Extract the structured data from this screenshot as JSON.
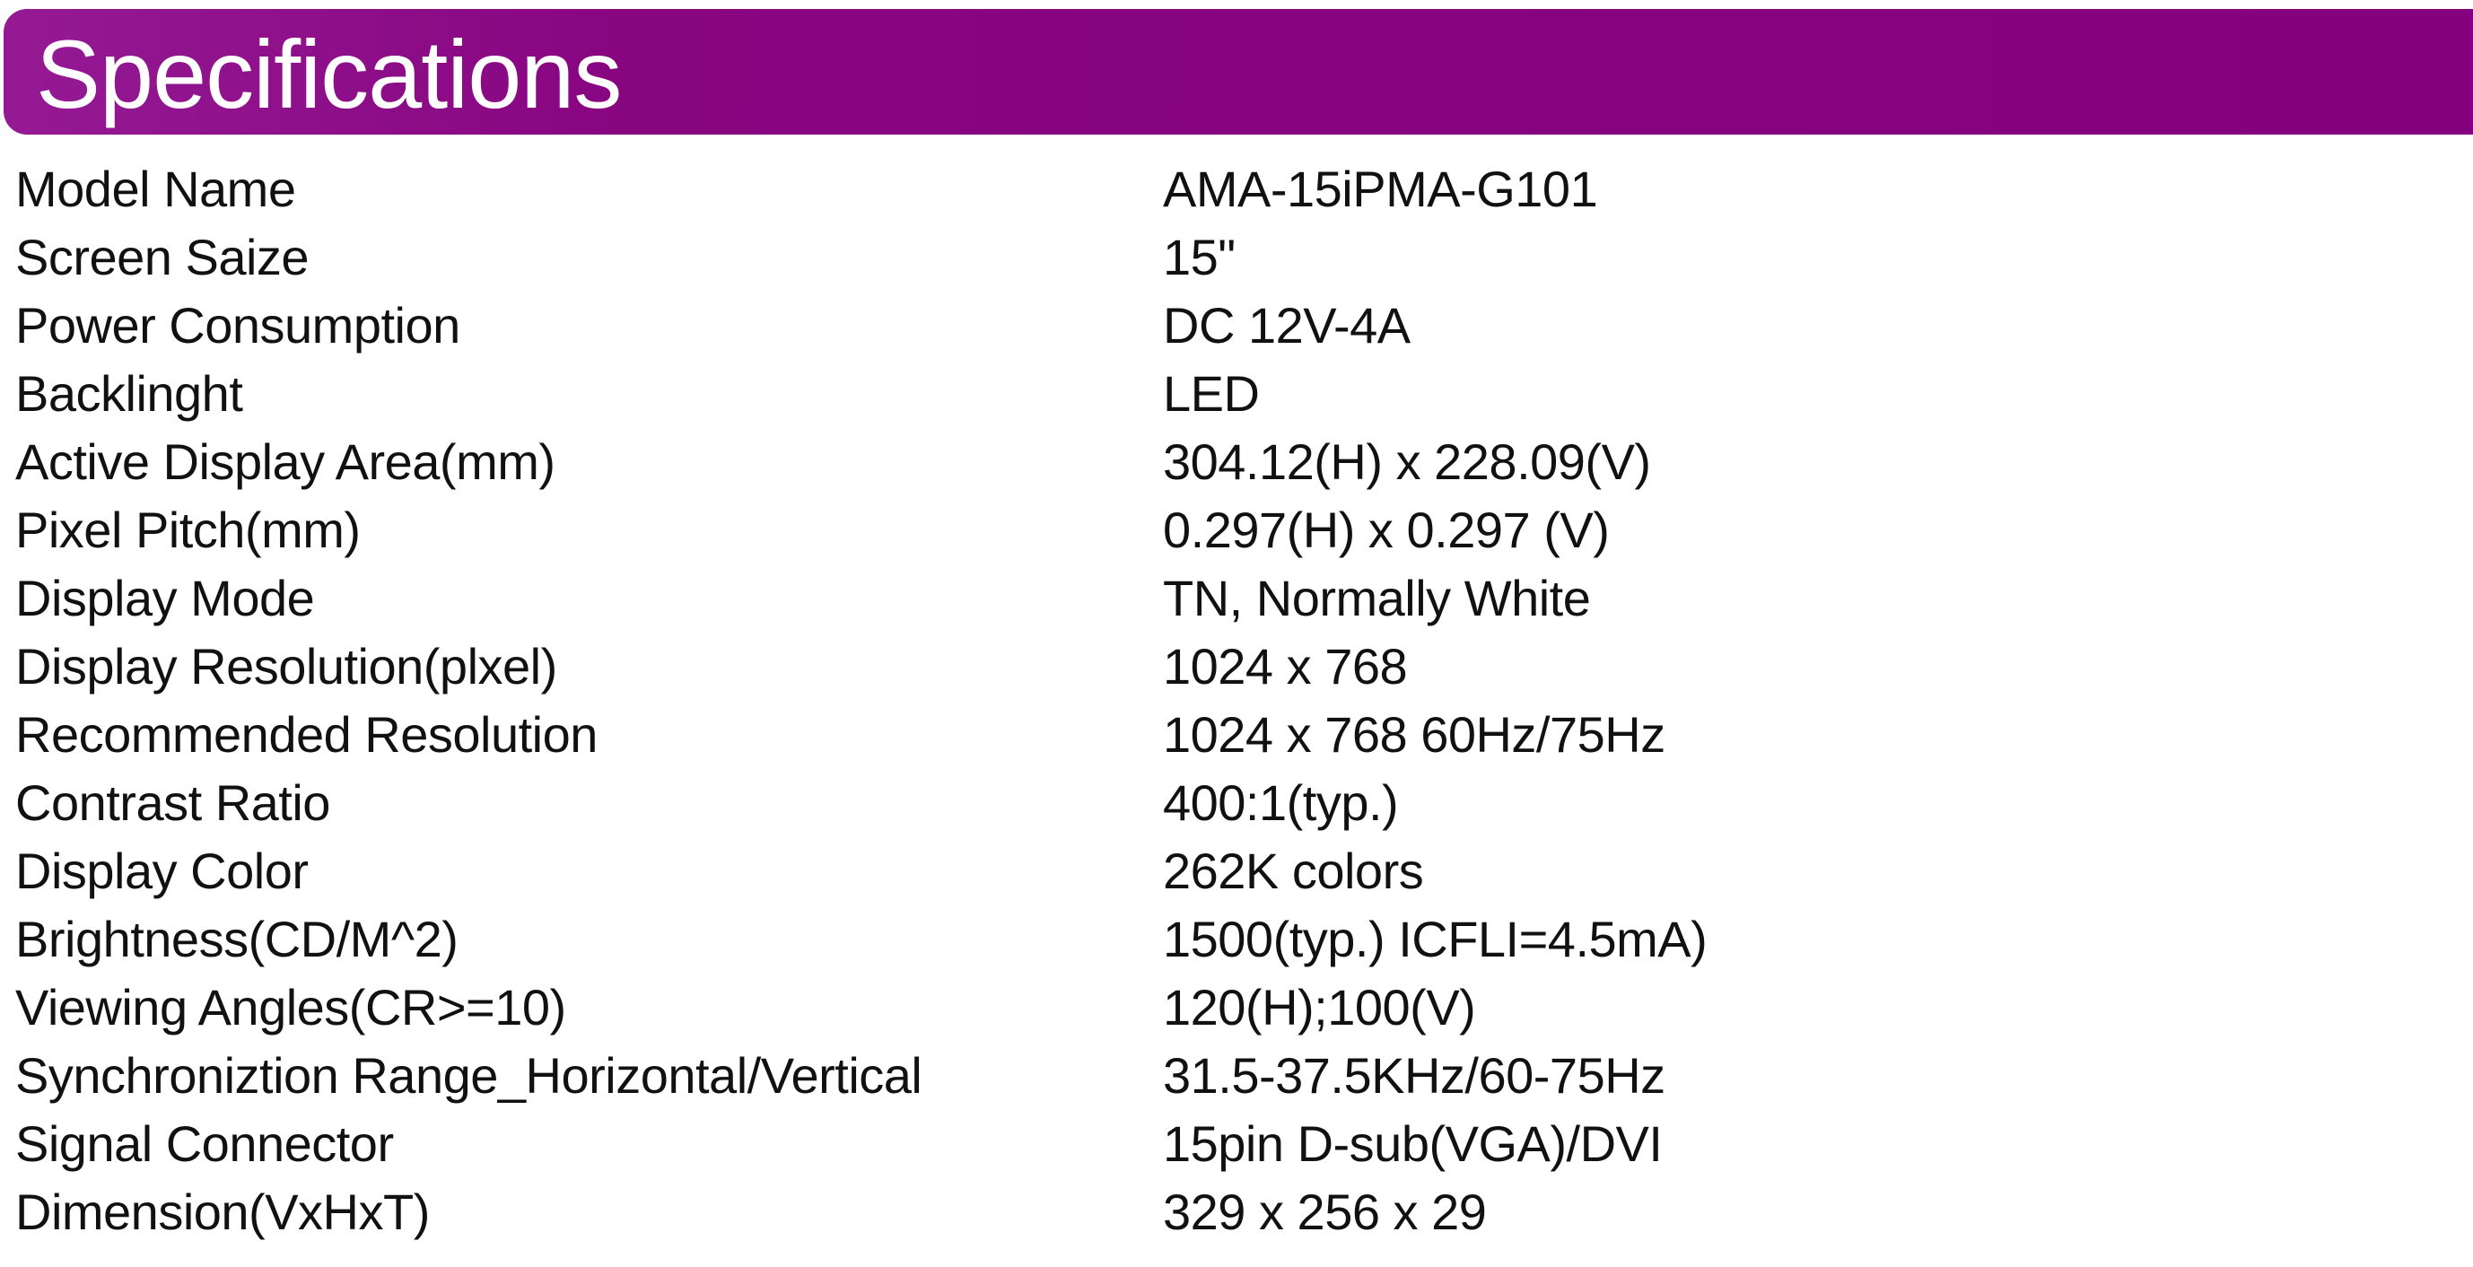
{
  "header": {
    "title": "Specifications",
    "color": "#880580"
  },
  "specs": [
    {
      "label": "Model Name",
      "value": "AMA-15iPMA-G101"
    },
    {
      "label": "Screen Saize",
      "value": "15\""
    },
    {
      "label": "Power Consumption",
      "value": "DC 12V-4A"
    },
    {
      "label": "Backlinght",
      "value": "LED"
    },
    {
      "label": "Active Display Area(mm)",
      "value": "304.12(H) x 228.09(V)"
    },
    {
      "label": "Pixel Pitch(mm)",
      "value": "0.297(H) x 0.297 (V)"
    },
    {
      "label": "Display Mode",
      "value": "TN, Normally White"
    },
    {
      "label": "Display Resolution(plxel)",
      "value": "1024 x 768"
    },
    {
      "label": "Recommended Resolution",
      "value": "1024 x 768 60Hz/75Hz"
    },
    {
      "label": "Contrast Ratio",
      "value": "400:1(typ.)"
    },
    {
      "label": "Display Color",
      "value": "262K colors"
    },
    {
      "label": "Brightness(CD/M^2)",
      "value": "1500(typ.) ICFLI=4.5mA)"
    },
    {
      "label": "Viewing Angles(CR>=10)",
      "value": "120(H);100(V)"
    },
    {
      "label": "Synchroniztion Range_Horizontal/Vertical",
      "value": "31.5-37.5KHz/60-75Hz"
    },
    {
      "label": "Signal Connector",
      "value": "15pin D-sub(VGA)/DVI"
    },
    {
      "label": "Dimension(VxHxT)",
      "value": "329 x 256 x 29"
    }
  ]
}
